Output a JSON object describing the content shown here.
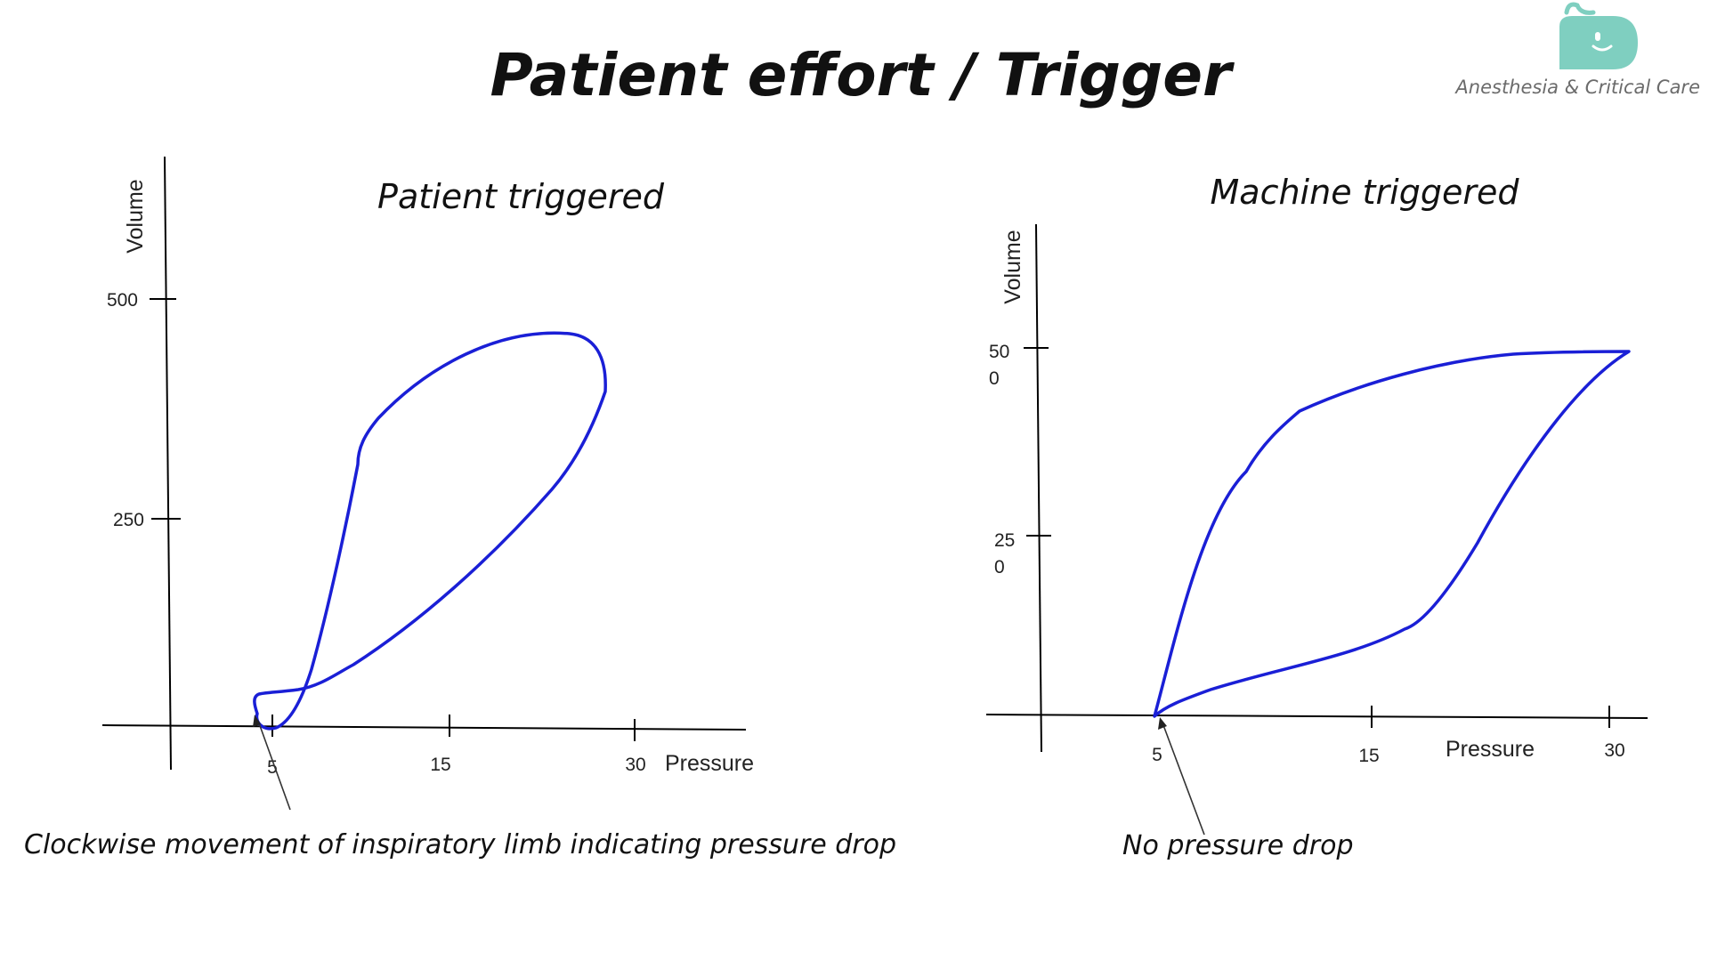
{
  "title": "Patient effort / Trigger",
  "brand": {
    "name": "Anesthesia & Critical Care",
    "logo_color": "#7fcfc0",
    "text_color": "#6b6b6b"
  },
  "colors": {
    "loop": "#1a1fd6",
    "axis": "#000000"
  },
  "left_panel": {
    "title": "Patient triggered",
    "y_axis_label": "Volume",
    "x_axis_label": "Pressure",
    "y_ticks": [
      "500",
      "250"
    ],
    "x_ticks": [
      "5",
      "15",
      "30"
    ],
    "caption": "Clockwise movement of inspiratory limb indicating pressure drop"
  },
  "right_panel": {
    "title": "Machine triggered",
    "y_axis_label": "Volume",
    "x_axis_label": "Pressure",
    "y_ticks_lines": [
      [
        "50",
        "0"
      ],
      [
        "25",
        "0"
      ]
    ],
    "x_ticks": [
      "5",
      "15",
      "30"
    ],
    "caption": "No pressure drop"
  }
}
